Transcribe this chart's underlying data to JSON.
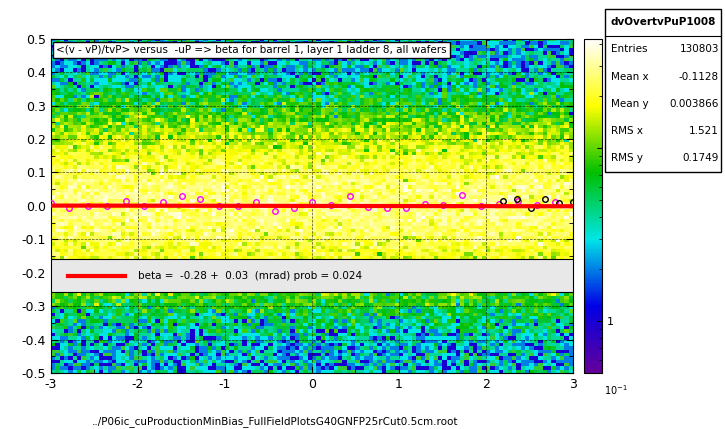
{
  "title": "<(v - vP)/tvP> versus  -uP => beta for barrel 1, layer 1 ladder 8, all wafers",
  "footer": "../P06ic_cuProductionMinBias_FullFieldPlotsG40GNFP25rCut0.5cm.root",
  "stats_title": "dvOvertvPuP1008",
  "entries": "130803",
  "mean_x": "-0.1128",
  "mean_y": "0.003866",
  "rms_x": "1.521",
  "rms_y": "0.1749",
  "xlim": [
    -3,
    3
  ],
  "ylim": [
    -0.5,
    0.5
  ],
  "fit_label": "beta =  -0.28 +  0.03  (mrad) prob = 0.024",
  "fit_color": "#ff0000",
  "profile_color": "#ff00ff",
  "profile_color2": "#000000",
  "seed": 42
}
